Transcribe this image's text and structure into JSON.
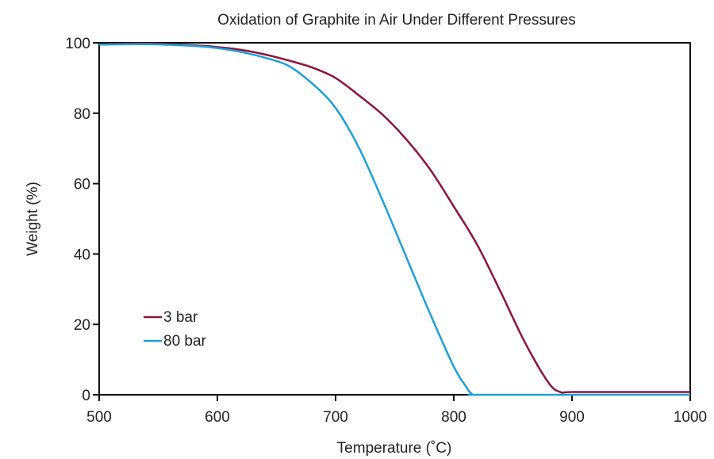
{
  "chart_data": {
    "type": "line",
    "title": "Oxidation of Graphite in Air Under Different Pressures",
    "xlabel": "Temperature (˚C)",
    "ylabel": "Weight (%)",
    "xlim": [
      500,
      1000
    ],
    "ylim": [
      0,
      100
    ],
    "xticks": [
      500,
      600,
      700,
      800,
      900,
      1000
    ],
    "yticks": [
      0,
      20,
      40,
      60,
      80,
      100
    ],
    "grid": false,
    "legend_position": "lower-left",
    "series": [
      {
        "name": "3 bar",
        "color": "#8b1538",
        "x": [
          500,
          540,
          580,
          600,
          620,
          640,
          660,
          680,
          700,
          720,
          740,
          760,
          780,
          800,
          820,
          840,
          860,
          880,
          890,
          900,
          950,
          1000
        ],
        "y": [
          99.5,
          99.8,
          99.3,
          98.8,
          98.0,
          96.7,
          95.0,
          93.0,
          90.0,
          85.0,
          79.5,
          72.5,
          64.0,
          53.5,
          42.5,
          29.0,
          15.0,
          3.5,
          0.8,
          0.8,
          0.8,
          0.8
        ]
      },
      {
        "name": "80 bar",
        "color": "#1f9fd8",
        "x": [
          500,
          540,
          580,
          600,
          620,
          640,
          660,
          680,
          700,
          720,
          740,
          760,
          780,
          800,
          810,
          815,
          820,
          900,
          1000
        ],
        "y": [
          99.5,
          99.6,
          99.1,
          98.5,
          97.4,
          95.8,
          93.5,
          88.5,
          81.5,
          70.0,
          55.0,
          39.0,
          23.0,
          8.0,
          2.5,
          0.3,
          0.0,
          0.0,
          0.0
        ]
      }
    ]
  }
}
